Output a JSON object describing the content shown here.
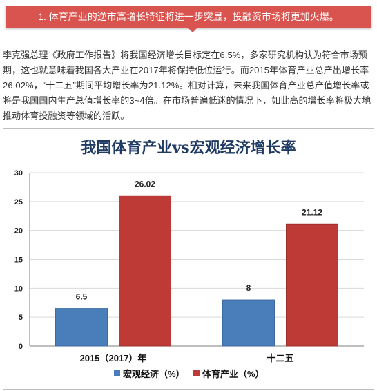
{
  "banner": {
    "text": "1. 体育产业的逆市高增长特征将进一步突显，投融资市场将更加火爆。"
  },
  "paragraph": {
    "text": "李克强总理《政府工作报告》将我国经济增长目标定在6.5%，多家研究机构认为符合市场预期，这也就意味着我国各大产业在2017年将保持低位运行。而2015年体育产业总产出增长率26.02%，“十二五”期间平均增长率为21.12%。相对计算，未来我国体育产业总产值增长率或将是我国国内生产总值增长率的3~4倍。在市场普遍低迷的情况下，如此高的增长率将极大地推动体育投融资等领域的活跃。"
  },
  "chart_data": {
    "type": "bar",
    "title": "我国体育产业vs宏观经济增长率",
    "categories": [
      "2015（2017）年",
      "十二五"
    ],
    "series": [
      {
        "name": "宏观经济（%）",
        "values": [
          6.5,
          8
        ],
        "value_labels": [
          "6.5",
          "8"
        ],
        "color": "#4a7ebb"
      },
      {
        "name": "体育产业（%）",
        "values": [
          26.02,
          21.12
        ],
        "value_labels": [
          "26.02",
          "21.12"
        ],
        "color": "#be3a36"
      }
    ],
    "ylim": [
      0,
      30
    ],
    "yticks": [
      "0",
      "5",
      "10",
      "15",
      "20",
      "25",
      "30"
    ],
    "grid": true,
    "legend_position": "bottom"
  }
}
